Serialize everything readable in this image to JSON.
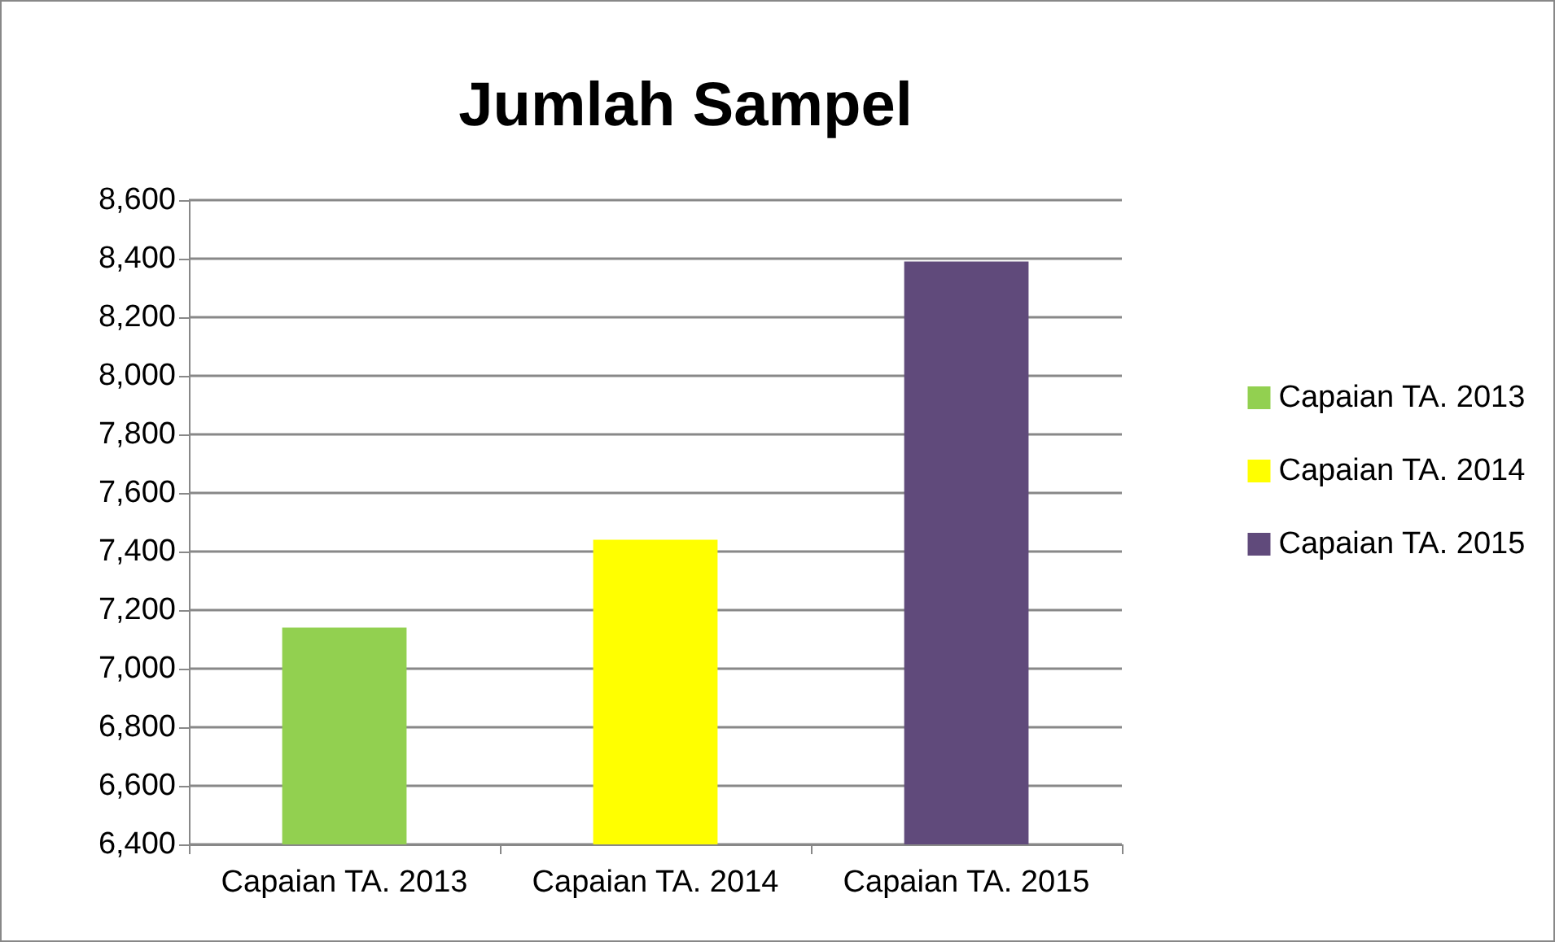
{
  "chart_data": {
    "type": "bar",
    "title": "Jumlah Sampel",
    "categories": [
      "Capaian TA. 2013",
      "Capaian TA. 2014",
      "Capaian TA. 2015"
    ],
    "series": [
      {
        "name": "Capaian TA. 2013",
        "color": "#92d050",
        "values": [
          7140,
          null,
          null
        ]
      },
      {
        "name": "Capaian TA. 2014",
        "color": "#ffff00",
        "values": [
          null,
          7440,
          null
        ]
      },
      {
        "name": "Capaian TA. 2015",
        "color": "#604a7b",
        "values": [
          null,
          null,
          8390
        ]
      }
    ],
    "ylim": [
      6400,
      8600
    ],
    "yticks": [
      {
        "value": 6400,
        "label": "6,400"
      },
      {
        "value": 6600,
        "label": "6,600"
      },
      {
        "value": 6800,
        "label": "6,800"
      },
      {
        "value": 7000,
        "label": "7,000"
      },
      {
        "value": 7200,
        "label": "7,200"
      },
      {
        "value": 7400,
        "label": "7,400"
      },
      {
        "value": 7600,
        "label": "7,600"
      },
      {
        "value": 7800,
        "label": "7,800"
      },
      {
        "value": 8000,
        "label": "8,000"
      },
      {
        "value": 8200,
        "label": "8,200"
      },
      {
        "value": 8400,
        "label": "8,400"
      },
      {
        "value": 8600,
        "label": "8,600"
      }
    ],
    "grid": "y",
    "legend": "right"
  }
}
